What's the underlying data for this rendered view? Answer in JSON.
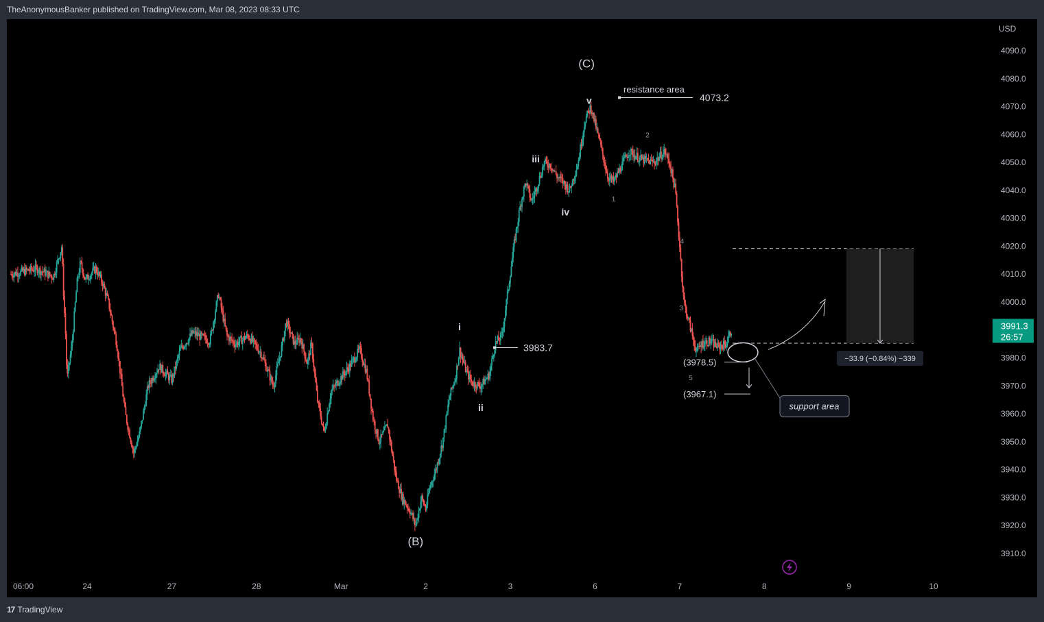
{
  "header": {
    "attribution": "TheAnonymousBanker published on TradingView.com, Mar 08, 2023 08:33 UTC"
  },
  "footer": {
    "brand_logo": "17",
    "brand": "TradingView"
  },
  "colors": {
    "up": "#26a69a",
    "down": "#ef5350",
    "price_tag": "#089981",
    "annotation": "#d1d4dc",
    "axis_text": "#b2b5be"
  },
  "chart_data": {
    "type": "candlestick",
    "currency": "USD",
    "price_axis": {
      "ticks": [
        4090.0,
        4080.0,
        4070.0,
        4060.0,
        4050.0,
        4040.0,
        4030.0,
        4020.0,
        4010.0,
        4000.0,
        3990.0,
        3980.0,
        3970.0,
        3960.0,
        3950.0,
        3940.0,
        3930.0,
        3920.0,
        3910.0
      ],
      "tick_labels": [
        "4090.0",
        "4080.0",
        "4070.0",
        "4060.0",
        "4050.0",
        "4040.0",
        "4030.0",
        "4020.0",
        "4010.0",
        "4000.0",
        "3990.0",
        "3980.0",
        "3970.0",
        "3960.0",
        "3950.0",
        "3940.0",
        "3930.0",
        "3920.0",
        "3910.0"
      ],
      "range": [
        3905,
        4098
      ]
    },
    "time_axis": {
      "labels": [
        "06:00",
        "24",
        "27",
        "28",
        "Mar",
        "2",
        "3",
        "6",
        "7",
        "8",
        "9",
        "10"
      ],
      "session_index": [
        0,
        0.9,
        1.9,
        2.9,
        3.9,
        4.9,
        5.9,
        6.9,
        7.9,
        8.9,
        9.9,
        10.9
      ]
    },
    "last_price": {
      "value": 3991.3,
      "label": "3991.3",
      "countdown": "26:57"
    },
    "price_path": [
      [
        0.0,
        4010
      ],
      [
        0.3,
        4012
      ],
      [
        0.5,
        4009
      ],
      [
        0.6,
        4020
      ],
      [
        0.62,
        4004
      ],
      [
        0.65,
        3985
      ],
      [
        0.66,
        3972
      ],
      [
        0.72,
        3985
      ],
      [
        0.78,
        4007
      ],
      [
        0.82,
        4014
      ],
      [
        0.88,
        4008
      ],
      [
        1.0,
        4012
      ],
      [
        1.08,
        4007
      ],
      [
        1.15,
        4000
      ],
      [
        1.25,
        3985
      ],
      [
        1.35,
        3960
      ],
      [
        1.45,
        3946
      ],
      [
        1.52,
        3953
      ],
      [
        1.62,
        3970
      ],
      [
        1.75,
        3977
      ],
      [
        1.9,
        3972
      ],
      [
        2.0,
        3983
      ],
      [
        2.15,
        3989
      ],
      [
        2.35,
        3986
      ],
      [
        2.45,
        4003
      ],
      [
        2.55,
        3988
      ],
      [
        2.65,
        3985
      ],
      [
        2.8,
        3988
      ],
      [
        2.95,
        3982
      ],
      [
        3.1,
        3970
      ],
      [
        3.2,
        3984
      ],
      [
        3.25,
        3993
      ],
      [
        3.35,
        3985
      ],
      [
        3.42,
        3987
      ],
      [
        3.5,
        3978
      ],
      [
        3.55,
        3985
      ],
      [
        3.62,
        3965
      ],
      [
        3.7,
        3953
      ],
      [
        3.78,
        3968
      ],
      [
        3.9,
        3973
      ],
      [
        4.0,
        3977
      ],
      [
        4.12,
        3983
      ],
      [
        4.2,
        3975
      ],
      [
        4.28,
        3958
      ],
      [
        4.35,
        3950
      ],
      [
        4.45,
        3956
      ],
      [
        4.55,
        3937
      ],
      [
        4.62,
        3930
      ],
      [
        4.72,
        3925
      ],
      [
        4.78,
        3920
      ],
      [
        4.85,
        3930
      ],
      [
        4.9,
        3926
      ],
      [
        4.95,
        3934
      ],
      [
        5.02,
        3940
      ],
      [
        5.1,
        3950
      ],
      [
        5.18,
        3966
      ],
      [
        5.25,
        3973
      ],
      [
        5.3,
        3983
      ],
      [
        5.38,
        3975
      ],
      [
        5.45,
        3971
      ],
      [
        5.55,
        3970
      ],
      [
        5.65,
        3974
      ],
      [
        5.72,
        3985
      ],
      [
        5.8,
        3988
      ],
      [
        5.88,
        4006
      ],
      [
        5.95,
        4022
      ],
      [
        6.02,
        4035
      ],
      [
        6.08,
        4043
      ],
      [
        6.15,
        4036
      ],
      [
        6.22,
        4042
      ],
      [
        6.3,
        4050
      ],
      [
        6.38,
        4049
      ],
      [
        6.45,
        4045
      ],
      [
        6.52,
        4043
      ],
      [
        6.6,
        4040
      ],
      [
        6.7,
        4050
      ],
      [
        6.78,
        4065
      ],
      [
        6.85,
        4070
      ],
      [
        6.95,
        4058
      ],
      [
        7.05,
        4045
      ],
      [
        7.12,
        4043
      ],
      [
        7.2,
        4048
      ],
      [
        7.3,
        4054
      ],
      [
        7.45,
        4051
      ],
      [
        7.6,
        4050
      ],
      [
        7.72,
        4054
      ],
      [
        7.78,
        4050
      ],
      [
        7.85,
        4040
      ],
      [
        7.9,
        4020
      ],
      [
        7.95,
        4000
      ],
      [
        8.0,
        3994
      ],
      [
        8.05,
        3988
      ],
      [
        8.1,
        3982
      ],
      [
        8.15,
        3985
      ],
      [
        8.25,
        3986
      ],
      [
        8.35,
        3984
      ],
      [
        8.45,
        3985
      ],
      [
        8.52,
        3991
      ]
    ],
    "wave_labels": [
      {
        "text": "(B)",
        "price": 3913,
        "idx": 4.78
      },
      {
        "text": "i",
        "price": 3990,
        "idx": 5.3
      },
      {
        "text": "ii",
        "price": 3961,
        "idx": 5.55
      },
      {
        "text": "iii",
        "price": 4050,
        "idx": 6.2
      },
      {
        "text": "iv",
        "price": 4031,
        "idx": 6.55
      },
      {
        "text": "(C)",
        "price": 4084,
        "idx": 6.8
      },
      {
        "text": "v",
        "price": 4071,
        "idx": 6.83
      },
      {
        "text": "1",
        "price": 4036,
        "idx": 7.12
      },
      {
        "text": "2",
        "price": 4059,
        "idx": 7.52
      },
      {
        "text": "3",
        "price": 3997,
        "idx": 7.92
      },
      {
        "text": "4",
        "price": 4021,
        "idx": 7.93
      },
      {
        "text": "5",
        "price": 3972,
        "idx": 8.03
      }
    ],
    "annotations": {
      "resistance_label": "resistance area",
      "resistance_level": "4073.2",
      "resistance_price": 4073.2,
      "i_level": "3983.7",
      "i_price": 3983.7,
      "target1": "(3978.5)",
      "target1_price": 3978.5,
      "target2": "(3967.1)",
      "target2_price": 3967.1,
      "support_label": "support area",
      "measure_label": "−33.9 (−0.84%) −339",
      "measure_top": 4019.2,
      "measure_bottom": 3985.3
    }
  }
}
